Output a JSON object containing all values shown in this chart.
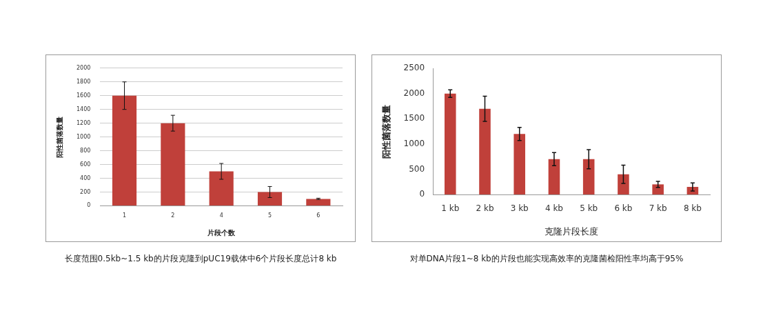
{
  "chart_data": [
    {
      "type": "bar",
      "xlabel": "片段个数",
      "ylabel": "阳性菌落数量",
      "categories": [
        "1",
        "2",
        "4",
        "5",
        "6"
      ],
      "values": [
        1600,
        1200,
        500,
        200,
        100
      ],
      "errors": [
        200,
        115,
        115,
        80,
        10
      ],
      "color": "#c0403a",
      "ylim": [
        0,
        2000
      ],
      "yticks": [
        0,
        200,
        400,
        600,
        800,
        1000,
        1200,
        1400,
        1600,
        1800,
        2000
      ],
      "grid": "y",
      "annotations": [
        "长度范围0.5kb~1.5 kb的片段克隆到pUC19载体中6个片段长度总计8 kb"
      ]
    },
    {
      "type": "bar",
      "xlabel": "克隆片段长度",
      "ylabel": "阳性菌落数量",
      "categories": [
        "1 kb",
        "2 kb",
        "3 kb",
        "4 kb",
        "5 kb",
        "6 kb",
        "7 kb",
        "8 kb"
      ],
      "values": [
        2000,
        1700,
        1200,
        700,
        700,
        400,
        200,
        150
      ],
      "errors": [
        75,
        250,
        130,
        130,
        190,
        180,
        60,
        80
      ],
      "color": "#c0403a",
      "ylim": [
        0,
        2500
      ],
      "yticks": [
        0,
        500,
        1000,
        1500,
        2000,
        2500
      ],
      "annotations": [
        "对单DNA片段1~8 kb的片段也能实现高效率的克隆菌检阳性率均高于95%"
      ]
    }
  ]
}
